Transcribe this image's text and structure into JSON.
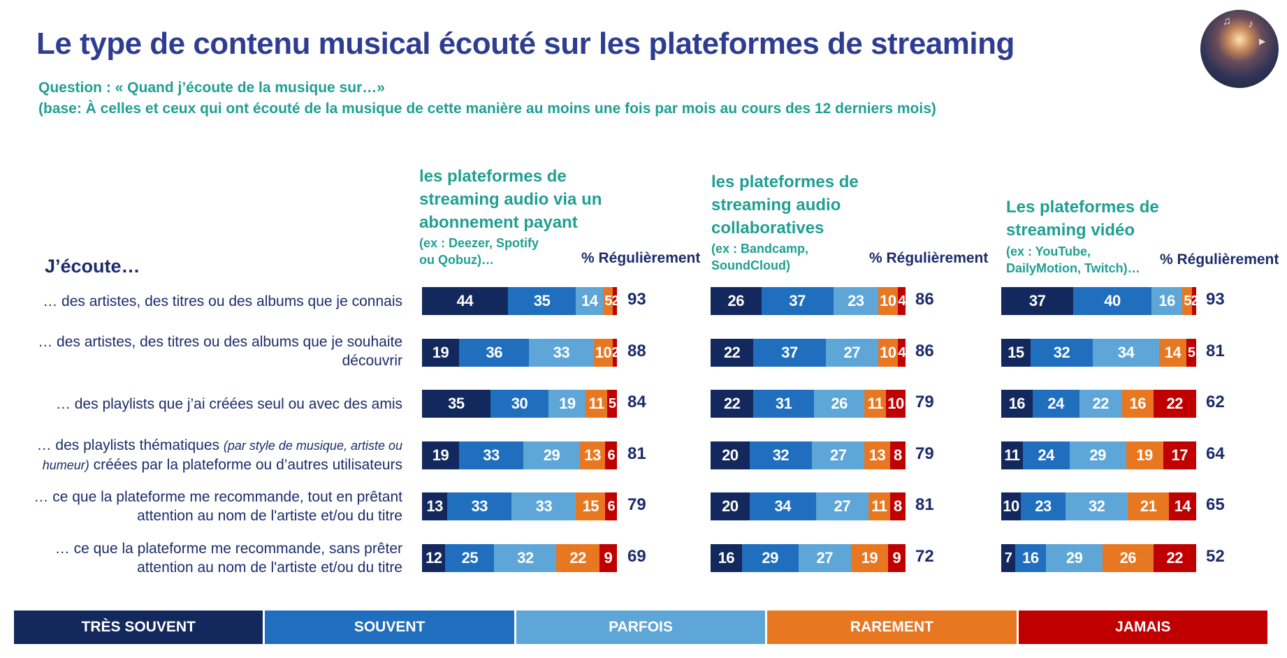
{
  "title": "Le type de contenu musical écouté sur les plateformes de streaming",
  "question": "Question : « Quand j’écoute de la musique sur…»",
  "base": "(base: À celles et ceux qui ont écouté de la musique de cette manière au moins une fois par mois au cours des 12 derniers mois)",
  "row_header": "J’écoute…",
  "reg_header": "% Régulièrement",
  "icons": {
    "thumbnail": "concert-photo-icon"
  },
  "colors": {
    "tres_souvent": "#13285c",
    "souvent": "#1f6fbe",
    "parfois": "#5ea6d8",
    "rarement": "#e87722",
    "jamais": "#c00000",
    "title": "#2e3d8f",
    "teal": "#1f9f92"
  },
  "rows": [
    {
      "line1": "… des artistes, des titres ou des albums que je connais",
      "line2": ""
    },
    {
      "line1": "… des artistes, des titres ou des albums que je souhaite",
      "line2": "découvrir"
    },
    {
      "line1": "… des playlists que j’ai créées seul ou avec des amis",
      "line2": ""
    },
    {
      "line1": "… des playlists thématiques ",
      "line1_italic": "(par style de musique, artiste ou",
      "line2_italic": "humeur)",
      "line2": " créées par la plateforme ou d’autres utilisateurs"
    },
    {
      "line1": "… ce que la plateforme me recommande, tout en prêtant",
      "line2": "attention au nom de l'artiste et/ou du titre"
    },
    {
      "line1": "… ce que la plateforme me recommande, sans prêter",
      "line2": "attention au nom de l'artiste et/ou du titre"
    }
  ],
  "panels": [
    {
      "title_lines": [
        "les plateformes de",
        "streaming audio via un",
        "abonnement payant"
      ],
      "ex_lines": [
        "(ex : Deezer, Spotify",
        "ou Qobuz)…"
      ]
    },
    {
      "title_lines": [
        "les plateformes de",
        "streaming audio",
        "collaboratives"
      ],
      "ex_lines": [
        "(ex : Bandcamp,",
        "SoundCloud)"
      ]
    },
    {
      "title_lines": [
        "Les plateformes de",
        "streaming vidéo"
      ],
      "ex_lines": [
        "(ex : YouTube,",
        "DailyMotion, Twitch)…"
      ]
    }
  ],
  "legend": [
    "TRÈS SOUVENT",
    "SOUVENT",
    "PARFOIS",
    "RAREMENT",
    "JAMAIS"
  ],
  "chart_data": {
    "type": "bar",
    "stacked": true,
    "orientation": "horizontal",
    "categories": [
      "… des artistes, des titres ou des albums que je connais",
      "… des artistes, des titres ou des albums que je souhaite découvrir",
      "… des playlists que j’ai créées seul ou avec des amis",
      "… des playlists thématiques (par style de musique, artiste ou humeur) créées par la plateforme ou d’autres utilisateurs",
      "… ce que la plateforme me recommande, tout en prêtant attention au nom de l'artiste et/ou du titre",
      "… ce que la plateforme me recommande, sans prêter attention au nom de l'artiste et/ou du titre"
    ],
    "series_names": [
      "TRÈS SOUVENT",
      "SOUVENT",
      "PARFOIS",
      "RAREMENT",
      "JAMAIS"
    ],
    "legend_position": "bottom",
    "panels": [
      {
        "title": "les plateformes de streaming audio via un abonnement payant",
        "values": [
          [
            44,
            35,
            14,
            5,
            2
          ],
          [
            19,
            36,
            33,
            10,
            2
          ],
          [
            35,
            30,
            19,
            11,
            5
          ],
          [
            19,
            33,
            29,
            13,
            6
          ],
          [
            13,
            33,
            33,
            15,
            6
          ],
          [
            12,
            25,
            32,
            22,
            9
          ]
        ],
        "regulierement": [
          93,
          88,
          84,
          81,
          79,
          69
        ]
      },
      {
        "title": "les plateformes de streaming audio collaboratives",
        "values": [
          [
            26,
            37,
            23,
            10,
            4
          ],
          [
            22,
            37,
            27,
            10,
            4
          ],
          [
            22,
            31,
            26,
            11,
            10
          ],
          [
            20,
            32,
            27,
            13,
            8
          ],
          [
            20,
            34,
            27,
            11,
            8
          ],
          [
            16,
            29,
            27,
            19,
            9
          ]
        ],
        "regulierement": [
          86,
          86,
          79,
          79,
          81,
          72
        ]
      },
      {
        "title": "Les plateformes de streaming vidéo",
        "values": [
          [
            37,
            40,
            16,
            5,
            2
          ],
          [
            15,
            32,
            34,
            14,
            5
          ],
          [
            16,
            24,
            22,
            16,
            22
          ],
          [
            11,
            24,
            29,
            19,
            17
          ],
          [
            10,
            23,
            32,
            21,
            14
          ],
          [
            7,
            16,
            29,
            26,
            22
          ]
        ],
        "regulierement": [
          93,
          81,
          62,
          64,
          65,
          52
        ]
      }
    ]
  }
}
